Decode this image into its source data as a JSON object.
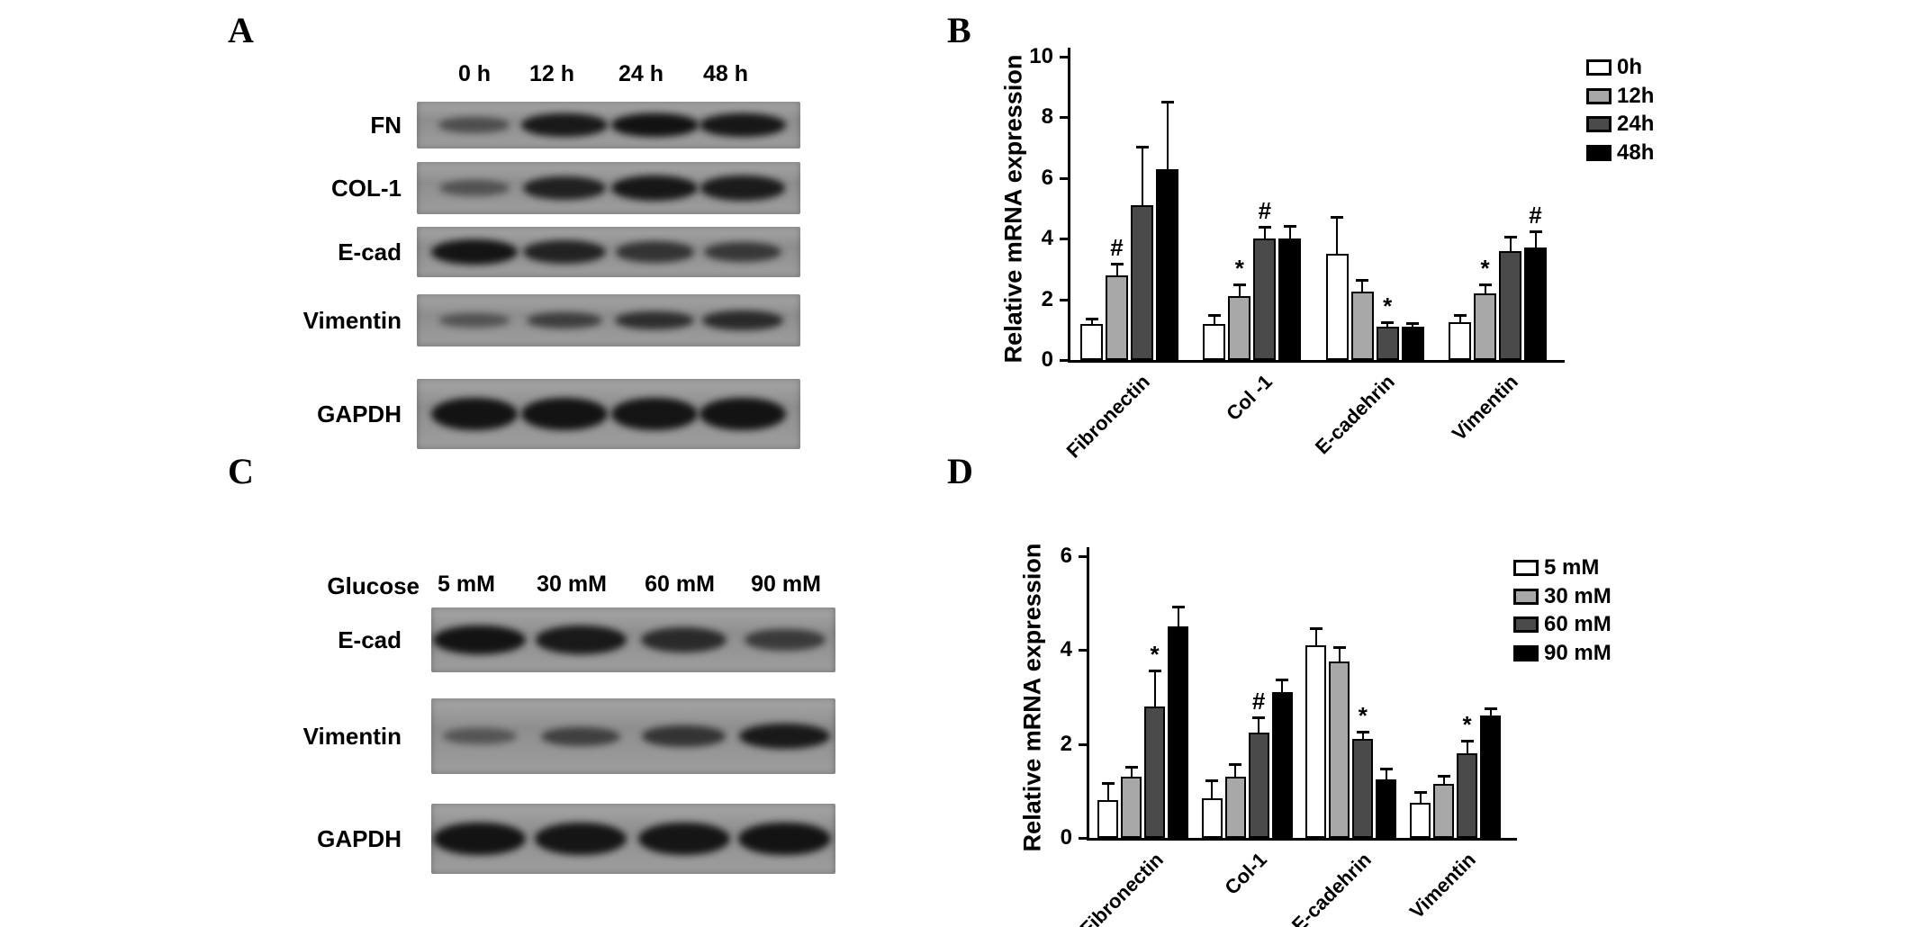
{
  "panels": {
    "a": {
      "label": "A",
      "col_headers": [
        "0 h",
        "12 h",
        "24 h",
        "48 h"
      ],
      "rows": [
        {
          "label": "FN",
          "bands": [
            0.35,
            0.9,
            0.97,
            0.93
          ]
        },
        {
          "label": "COL-1",
          "bands": [
            0.3,
            0.82,
            0.92,
            0.88
          ]
        },
        {
          "label": "E-cad",
          "bands": [
            0.95,
            0.8,
            0.62,
            0.58
          ]
        },
        {
          "label": "Vimentin",
          "bands": [
            0.3,
            0.52,
            0.68,
            0.72
          ]
        },
        {
          "label": "GAPDH",
          "bands": [
            0.96,
            0.96,
            0.95,
            0.96
          ]
        }
      ]
    },
    "b": {
      "label": "B"
    },
    "c": {
      "label": "C",
      "header_label": "Glucose",
      "col_headers": [
        "5 mM",
        "30 mM",
        "60 mM",
        "90 mM"
      ],
      "rows": [
        {
          "label": "E-cad",
          "bands": [
            0.96,
            0.9,
            0.72,
            0.55
          ]
        },
        {
          "label": "Vimentin",
          "bands": [
            0.28,
            0.5,
            0.62,
            0.9
          ]
        },
        {
          "label": "GAPDH",
          "bands": [
            0.96,
            0.94,
            0.94,
            0.96
          ]
        }
      ]
    },
    "d": {
      "label": "D"
    }
  },
  "chart_data": [
    {
      "id": "b",
      "type": "bar",
      "title": "",
      "xlabel": "",
      "ylabel": "Relative mRNA expression",
      "ylim": [
        0,
        10
      ],
      "yticks": [
        0,
        2,
        4,
        6,
        8,
        10
      ],
      "grid": false,
      "legend_position": "right",
      "categories": [
        "Fibronectin",
        "Col -1",
        "E-cadehrin",
        "Vimentin"
      ],
      "series": [
        {
          "name": "0h",
          "color": "#ffffff",
          "values": [
            1.2,
            1.2,
            3.5,
            1.25
          ],
          "errors": [
            0.15,
            0.25,
            1.2,
            0.2
          ],
          "annotations": [
            "",
            "",
            "",
            ""
          ]
        },
        {
          "name": "12h",
          "color": "#a8a8a8",
          "values": [
            2.8,
            2.1,
            2.25,
            2.2
          ],
          "errors": [
            0.35,
            0.35,
            0.35,
            0.25
          ],
          "annotations": [
            "#",
            "*",
            "",
            "*"
          ]
        },
        {
          "name": "24h",
          "color": "#4a4a4a",
          "values": [
            5.1,
            4.0,
            1.1,
            3.6
          ],
          "errors": [
            1.9,
            0.35,
            0.12,
            0.45
          ],
          "annotations": [
            "",
            "#",
            "*",
            ""
          ]
        },
        {
          "name": "48h",
          "color": "#000000",
          "values": [
            6.3,
            4.0,
            1.1,
            3.7
          ],
          "errors": [
            2.2,
            0.4,
            0.1,
            0.5
          ],
          "annotations": [
            "",
            "",
            "",
            "#"
          ]
        }
      ]
    },
    {
      "id": "d",
      "type": "bar",
      "title": "",
      "xlabel": "",
      "ylabel": "Relative mRNA expression",
      "ylim": [
        0,
        6
      ],
      "yticks": [
        0,
        2,
        4,
        6
      ],
      "grid": false,
      "legend_position": "right",
      "categories": [
        "Fibronectin",
        "Col-1",
        "E-cadehrin",
        "Vimentin"
      ],
      "series": [
        {
          "name": "5 mM",
          "color": "#ffffff",
          "values": [
            0.8,
            0.85,
            4.1,
            0.75
          ],
          "errors": [
            0.35,
            0.35,
            0.35,
            0.2
          ],
          "annotations": [
            "",
            "",
            "",
            ""
          ]
        },
        {
          "name": "30 mM",
          "color": "#a8a8a8",
          "values": [
            1.3,
            1.3,
            3.75,
            1.15
          ],
          "errors": [
            0.2,
            0.25,
            0.3,
            0.15
          ],
          "annotations": [
            "",
            "",
            "",
            ""
          ]
        },
        {
          "name": "60 mM",
          "color": "#4a4a4a",
          "values": [
            2.8,
            2.25,
            2.1,
            1.8
          ],
          "errors": [
            0.75,
            0.3,
            0.15,
            0.25
          ],
          "annotations": [
            "*",
            "#",
            "*",
            "*"
          ]
        },
        {
          "name": "90 mM",
          "color": "#000000",
          "values": [
            4.5,
            3.1,
            1.25,
            2.6
          ],
          "errors": [
            0.4,
            0.25,
            0.2,
            0.15
          ],
          "annotations": [
            "",
            "",
            "",
            ""
          ]
        }
      ]
    }
  ]
}
